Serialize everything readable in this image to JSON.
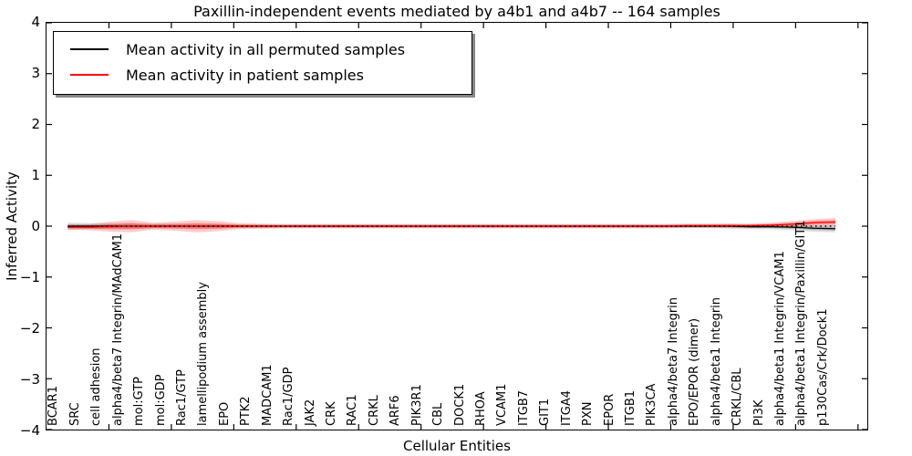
{
  "title": "Paxillin-independent events mediated by a4b1 and a4b7 -- 164 samples",
  "chart_data": {
    "type": "line",
    "title": "Paxillin-independent events mediated by a4b1 and a4b7 -- 164 samples",
    "xlabel": "Cellular Entities",
    "ylabel": "Inferred Activity",
    "ylim": [
      -4,
      4
    ],
    "y_ticks": [
      4,
      3,
      2,
      1,
      0,
      -1,
      -2,
      -3,
      -4
    ],
    "y_tick_labels": [
      "4",
      "3",
      "2",
      "1",
      "0",
      "−1",
      "−2",
      "−3",
      "−4"
    ],
    "grid": false,
    "legend_position": "upper left",
    "zero_line": {
      "style": "dotted",
      "color": "#000000",
      "y": 0
    },
    "categories": [
      "BCAR1",
      "SRC",
      "cell adhesion",
      "alpha4/beta7 Integrin/MAdCAM1",
      "mol:GTP",
      "mol:GDP",
      "Rac1/GTP",
      "lamellipodium assembly",
      "EPO",
      "PTK2",
      "MADCAM1",
      "Rac1/GDP",
      "JAK2",
      "CRK",
      "RAC1",
      "CRKL",
      "ARF6",
      "PIK3R1",
      "CBL",
      "DOCK1",
      "RHOA",
      "VCAM1",
      "ITGB7",
      "GIT1",
      "ITGA4",
      "PXN",
      "EPOR",
      "ITGB1",
      "PIK3CA",
      "alpha4/beta7 Integrin",
      "EPO/EPOR (dimer)",
      "alpha4/beta1 Integrin",
      "CRKL/CBL",
      "PI3K",
      "alpha4/beta1 Integrin/VCAM1",
      "alpha4/beta1 Integrin/Paxillin/GIT1",
      "p130Cas/Crk/Dock1"
    ],
    "series": [
      {
        "name": "Mean activity in all permuted samples",
        "color": "#000000",
        "means": [
          0,
          0,
          0,
          0,
          0,
          0,
          0,
          0,
          0,
          0,
          0,
          0,
          0,
          0,
          0,
          0,
          0,
          0,
          0,
          0,
          0,
          0,
          0,
          0,
          0,
          0,
          0,
          0,
          0,
          0,
          0,
          0,
          -0.01,
          -0.01,
          -0.02,
          -0.04,
          -0.05
        ],
        "band_halfwidth": [
          0.07,
          0.06,
          0.06,
          0.06,
          0.05,
          0.05,
          0.05,
          0.05,
          0.04,
          0.04,
          0.04,
          0.04,
          0.04,
          0.04,
          0.04,
          0.04,
          0.04,
          0.04,
          0.04,
          0.04,
          0.04,
          0.04,
          0.04,
          0.04,
          0.04,
          0.04,
          0.04,
          0.04,
          0.04,
          0.04,
          0.04,
          0.05,
          0.05,
          0.05,
          0.06,
          0.07,
          0.07
        ]
      },
      {
        "name": "Mean activity in patient samples",
        "color": "#ff0000",
        "means": [
          -0.02,
          -0.02,
          -0.01,
          0,
          0,
          0,
          0,
          0,
          0,
          0,
          0,
          0,
          0,
          0,
          0,
          0,
          0,
          0,
          0,
          0,
          0,
          0,
          0,
          0,
          0,
          0,
          0,
          0,
          0,
          0.01,
          0.01,
          0.01,
          0.01,
          0.02,
          0.04,
          0.07,
          0.08
        ],
        "band_halfwidth": [
          0.05,
          0.06,
          0.1,
          0.12,
          0.07,
          0.09,
          0.12,
          0.1,
          0.06,
          0.05,
          0.04,
          0.04,
          0.04,
          0.04,
          0.04,
          0.04,
          0.04,
          0.04,
          0.04,
          0.04,
          0.04,
          0.04,
          0.04,
          0.04,
          0.04,
          0.04,
          0.04,
          0.04,
          0.04,
          0.04,
          0.04,
          0.04,
          0.04,
          0.05,
          0.06,
          0.07,
          0.08
        ]
      }
    ]
  }
}
